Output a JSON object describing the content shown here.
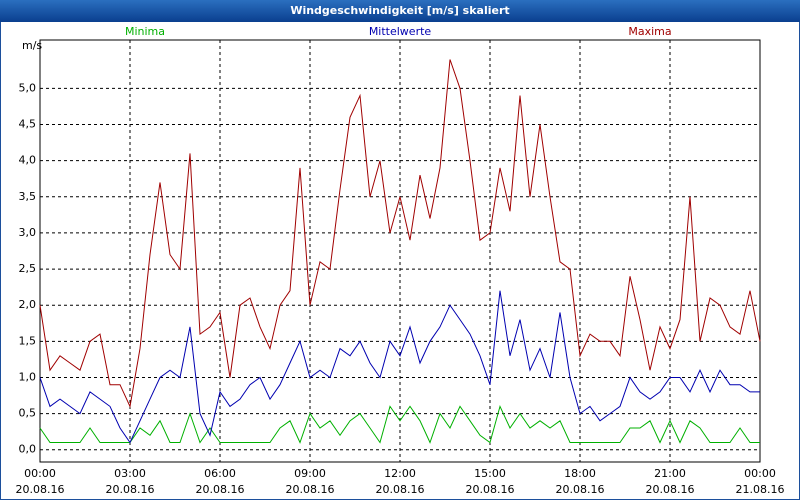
{
  "chart_data": {
    "type": "line",
    "title": "Windgeschwindigkeit [m/s] skaliert",
    "y_label": "m/s",
    "x": [
      0,
      20,
      40,
      60,
      80,
      100,
      120,
      140,
      160,
      180,
      200,
      220,
      240,
      260,
      280,
      300,
      320,
      340,
      360,
      380,
      400,
      420,
      440,
      460,
      480,
      500,
      520,
      540,
      560,
      580,
      600,
      620,
      640,
      660,
      680,
      700,
      720,
      740,
      760,
      780,
      800,
      820,
      840,
      860,
      880,
      900,
      920,
      940,
      960,
      980,
      1000,
      1020,
      1040,
      1060,
      1080,
      1100,
      1120,
      1140,
      1160,
      1180,
      1200,
      1220,
      1240,
      1260,
      1280,
      1300,
      1320,
      1340,
      1360,
      1380,
      1400,
      1420,
      1440
    ],
    "series": [
      {
        "name": "Minima",
        "color": "#00b000",
        "values": [
          0.3,
          0.1,
          0.1,
          0.1,
          0.1,
          0.3,
          0.1,
          0.1,
          0.1,
          0.1,
          0.3,
          0.2,
          0.4,
          0.1,
          0.1,
          0.5,
          0.1,
          0.3,
          0.1,
          0.1,
          0.1,
          0.1,
          0.1,
          0.1,
          0.3,
          0.4,
          0.1,
          0.5,
          0.3,
          0.4,
          0.2,
          0.4,
          0.5,
          0.3,
          0.1,
          0.6,
          0.4,
          0.6,
          0.4,
          0.1,
          0.5,
          0.3,
          0.6,
          0.4,
          0.2,
          0.1,
          0.6,
          0.3,
          0.5,
          0.3,
          0.4,
          0.3,
          0.4,
          0.1,
          0.1,
          0.1,
          0.1,
          0.1,
          0.1,
          0.3,
          0.3,
          0.4,
          0.1,
          0.4,
          0.1,
          0.4,
          0.3,
          0.1,
          0.1,
          0.1,
          0.3,
          0.1,
          0.1
        ]
      },
      {
        "name": "Mittelwerte",
        "color": "#0000b0",
        "values": [
          1.0,
          0.6,
          0.7,
          0.6,
          0.5,
          0.8,
          0.7,
          0.6,
          0.3,
          0.1,
          0.4,
          0.7,
          1.0,
          1.1,
          1.0,
          1.7,
          0.5,
          0.2,
          0.8,
          0.6,
          0.7,
          0.9,
          1.0,
          0.7,
          0.9,
          1.2,
          1.5,
          1.0,
          1.1,
          1.0,
          1.4,
          1.3,
          1.5,
          1.2,
          1.0,
          1.5,
          1.3,
          1.7,
          1.2,
          1.5,
          1.7,
          2.0,
          1.8,
          1.6,
          1.3,
          0.9,
          2.2,
          1.3,
          1.8,
          1.1,
          1.4,
          1.0,
          1.9,
          1.0,
          0.5,
          0.6,
          0.4,
          0.5,
          0.6,
          1.0,
          0.8,
          0.7,
          0.8,
          1.0,
          1.0,
          0.8,
          1.1,
          0.8,
          1.1,
          0.9,
          0.9,
          0.8,
          0.8
        ]
      },
      {
        "name": "Maxima",
        "color": "#a00000",
        "values": [
          2.0,
          1.1,
          1.3,
          1.2,
          1.1,
          1.5,
          1.6,
          0.9,
          0.9,
          0.6,
          1.4,
          2.7,
          3.7,
          2.7,
          2.5,
          4.1,
          1.6,
          1.7,
          1.9,
          1.0,
          2.0,
          2.1,
          1.7,
          1.4,
          2.0,
          2.2,
          3.9,
          2.0,
          2.6,
          2.5,
          3.6,
          4.6,
          4.9,
          3.5,
          4.0,
          3.0,
          3.5,
          2.9,
          3.8,
          3.2,
          3.9,
          5.4,
          5.0,
          4.0,
          2.9,
          3.0,
          3.9,
          3.3,
          4.9,
          3.5,
          4.5,
          3.5,
          2.6,
          2.5,
          1.3,
          1.6,
          1.5,
          1.5,
          1.3,
          2.4,
          1.8,
          1.1,
          1.7,
          1.4,
          1.8,
          3.5,
          1.5,
          2.1,
          2.0,
          1.7,
          1.6,
          2.2,
          1.5
        ]
      }
    ],
    "xlim": [
      0,
      1440
    ],
    "xticks": [
      {
        "value": 0,
        "label": "00:00 20.08.16"
      },
      {
        "value": 180,
        "label": "03:00 20.08.16"
      },
      {
        "value": 360,
        "label": "06:00 20.08.16"
      },
      {
        "value": 540,
        "label": "09:00 20.08.16"
      },
      {
        "value": 720,
        "label": "12:00 20.08.16"
      },
      {
        "value": 900,
        "label": "15:00 20.08.16"
      },
      {
        "value": 1080,
        "label": "18:00 20.08.16"
      },
      {
        "value": 1260,
        "label": "21:00 20.08.16"
      },
      {
        "value": 1440,
        "label": "00:00 21.08.16"
      }
    ],
    "ylim": [
      -0.17,
      5.67
    ],
    "yticks": [
      {
        "value": 0,
        "label": "0,0"
      },
      {
        "value": 0.5,
        "label": "0,5"
      },
      {
        "value": 1,
        "label": "1,0"
      },
      {
        "value": 1.5,
        "label": "1,5"
      },
      {
        "value": 2,
        "label": "2,0"
      },
      {
        "value": 2.5,
        "label": "2,5"
      },
      {
        "value": 3,
        "label": "3,0"
      },
      {
        "value": 3.5,
        "label": "3,5"
      },
      {
        "value": 4,
        "label": "4,0"
      },
      {
        "value": 4.5,
        "label": "4,5"
      },
      {
        "value": 5,
        "label": "5,0"
      }
    ],
    "grid": true
  }
}
